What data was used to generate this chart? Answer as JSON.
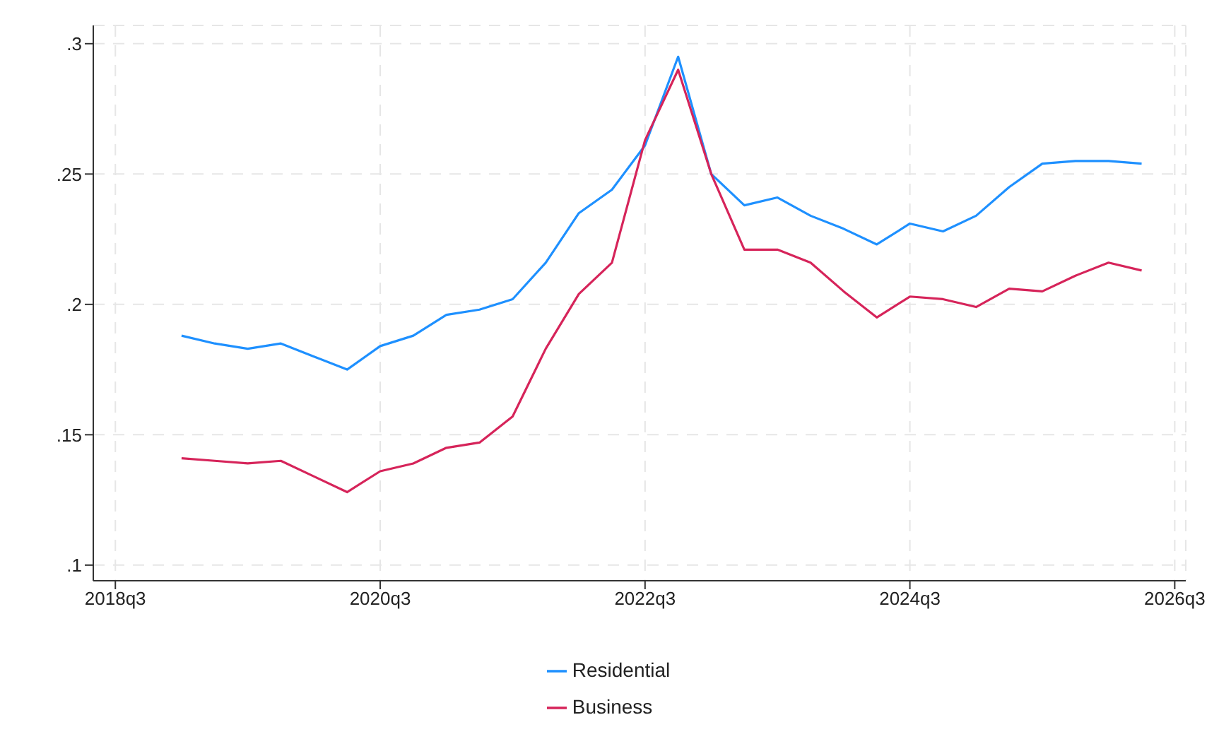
{
  "chart_data": {
    "type": "line",
    "x": [
      "2019-01",
      "2019-04",
      "2019-07",
      "2019-10",
      "2020-01",
      "2020-04",
      "2020-07",
      "2020-10",
      "2021-01",
      "2021-04",
      "2021-07",
      "2021-10",
      "2022-01",
      "2022-04",
      "2022-07",
      "2022-10",
      "2023-01",
      "2023-04",
      "2023-07",
      "2023-10",
      "2024-01",
      "2024-04",
      "2024-07",
      "2024-10",
      "2025-01",
      "2025-04",
      "2025-07",
      "2025-10",
      "2026-01",
      "2026-04"
    ],
    "series": [
      {
        "name": "Residential",
        "color": "#1e90ff",
        "values": [
          0.188,
          0.185,
          0.183,
          0.185,
          0.18,
          0.175,
          0.184,
          0.188,
          0.196,
          0.198,
          0.202,
          0.216,
          0.235,
          0.244,
          0.261,
          0.295,
          0.25,
          0.238,
          0.241,
          0.234,
          0.229,
          0.223,
          0.231,
          0.228,
          0.234,
          0.245,
          0.254,
          0.255,
          0.255,
          0.254
        ]
      },
      {
        "name": "Business",
        "color": "#d6245a",
        "values": [
          0.141,
          0.14,
          0.139,
          0.14,
          0.134,
          0.128,
          0.136,
          0.139,
          0.145,
          0.147,
          0.157,
          0.183,
          0.204,
          0.216,
          0.263,
          0.29,
          0.25,
          0.221,
          0.221,
          0.216,
          0.205,
          0.195,
          0.203,
          0.202,
          0.199,
          0.206,
          0.205,
          0.211,
          0.216,
          0.213
        ]
      }
    ],
    "xlim": [
      "2018-05",
      "2026-08"
    ],
    "xticks": [
      {
        "value": "2018-07",
        "label": "2018q3"
      },
      {
        "value": "2020-07",
        "label": "2020q3"
      },
      {
        "value": "2022-07",
        "label": "2022q3"
      },
      {
        "value": "2024-07",
        "label": "2024q3"
      },
      {
        "value": "2026-07",
        "label": "2026q3"
      }
    ],
    "ylim": [
      0.094,
      0.307
    ],
    "yticks": [
      {
        "value": 0.1,
        "label": ".1"
      },
      {
        "value": 0.15,
        "label": ".15"
      },
      {
        "value": 0.2,
        "label": ".2"
      },
      {
        "value": 0.25,
        "label": ".25"
      },
      {
        "value": 0.3,
        "label": ".3"
      }
    ],
    "grid": true,
    "legend": "bottom",
    "marker": "none",
    "line_style": "solid"
  }
}
